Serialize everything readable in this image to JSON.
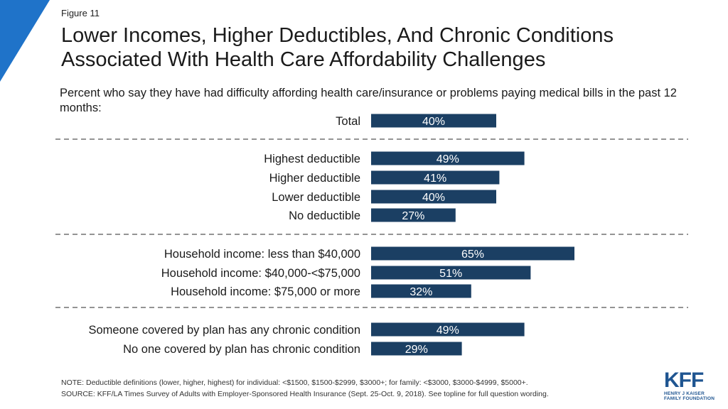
{
  "figure_label": "Figure 11",
  "title": "Lower Incomes, Higher Deductibles, And Chronic Conditions Associated With Health Care Affordability Challenges",
  "subtitle": "Percent who say they have had difficulty affording health care/insurance or problems paying medical bills in the past 12 months:",
  "colors": {
    "bar": "#1b3f63",
    "accent": "#1f73c9",
    "divider": "#555555"
  },
  "chart_data": {
    "type": "bar",
    "orientation": "horizontal",
    "value_suffix": "%",
    "xlim": [
      0,
      100
    ],
    "categories": [
      "Total",
      "Highest deductible",
      "Higher deductible",
      "Lower deductible",
      "No deductible",
      "Household income: less than $40,000",
      "Household income: $40,000-<$75,000",
      "Household income: $75,000 or more",
      "Someone covered by plan has any chronic condition",
      "No one covered by plan has chronic condition"
    ],
    "values": [
      40,
      49,
      41,
      40,
      27,
      65,
      51,
      32,
      49,
      29
    ],
    "data_labels": [
      "40%",
      "49%",
      "41%",
      "40%",
      "27%",
      "65%",
      "51%",
      "32%",
      "49%",
      "29%"
    ],
    "groups": [
      [
        0
      ],
      [
        1,
        2,
        3,
        4
      ],
      [
        5,
        6,
        7
      ],
      [
        8,
        9
      ]
    ],
    "grid": false
  },
  "footer": {
    "note": "NOTE: Deductible definitions (lower, higher, highest) for individual: <$1500, $1500-$2999, $3000+; for family: <$3000, $3000-$4999, $5000+.",
    "source": "SOURCE: KFF/LA Times Survey of Adults with Employer-Sponsored Health Insurance (Sept. 25-Oct. 9, 2018). See topline for full question wording."
  },
  "logo": {
    "word": "KFF",
    "line1": "HENRY J KAISER",
    "line2": "FAMILY FOUNDATION"
  }
}
